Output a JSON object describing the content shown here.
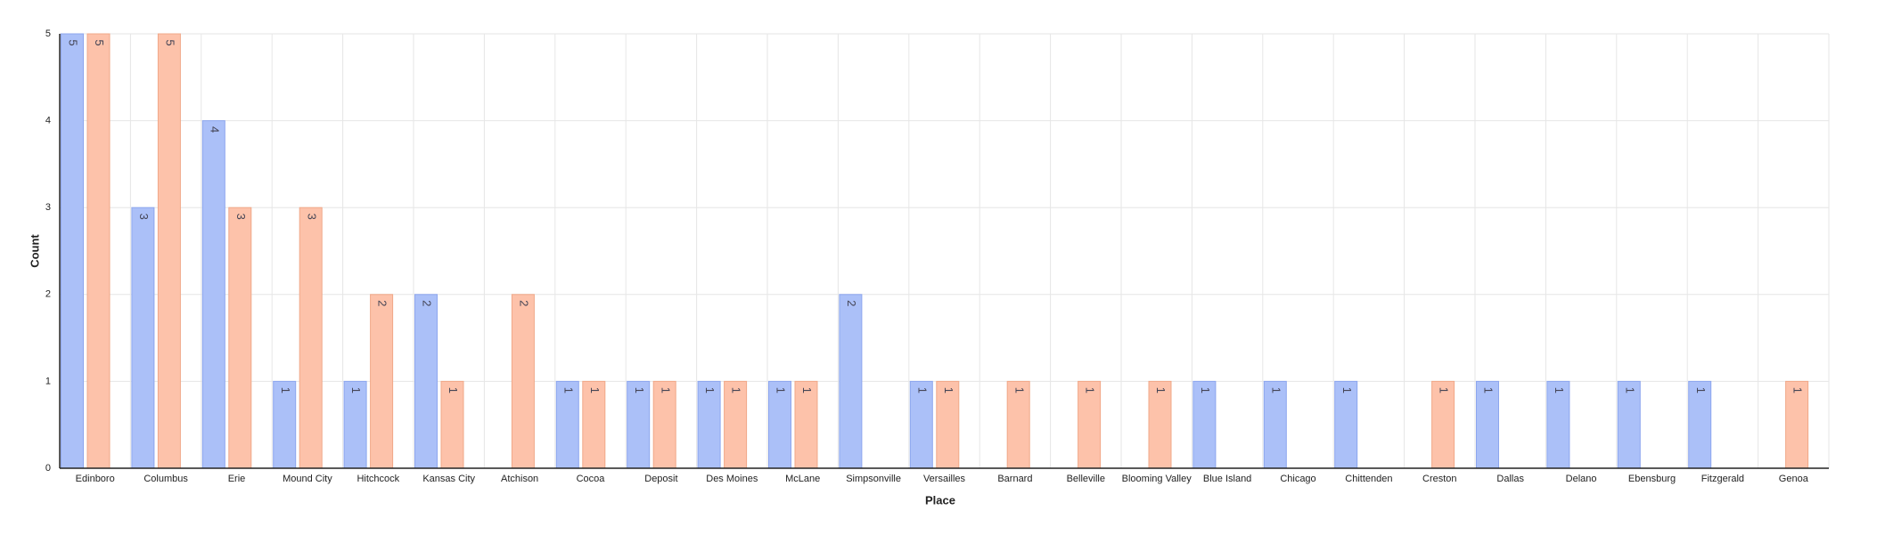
{
  "chart_data": {
    "type": "bar",
    "x_label": "Place",
    "y_label": "Count",
    "categories": [
      "Edinboro",
      "Columbus",
      "Erie",
      "Mound City",
      "Hitchcock",
      "Kansas City",
      "Atchison",
      "Cocoa",
      "Deposit",
      "Des Moines",
      "McLane",
      "Simpsonville",
      "Versailles",
      "Barnard",
      "Belleville",
      "Blooming Valley",
      "Blue Island",
      "Chicago",
      "Chittenden",
      "Creston",
      "Dallas",
      "Delano",
      "Ebensburg",
      "Fitzgerald",
      "Genoa"
    ],
    "series": [
      {
        "color": "#abc0f8",
        "values": [
          5,
          3,
          4,
          1,
          1,
          2,
          null,
          1,
          1,
          1,
          1,
          2,
          1,
          null,
          null,
          null,
          1,
          1,
          1,
          null,
          1,
          1,
          1,
          1,
          null
        ]
      },
      {
        "color": "#fdc2aa",
        "values": [
          5,
          5,
          3,
          3,
          2,
          1,
          2,
          1,
          1,
          1,
          1,
          null,
          1,
          1,
          1,
          1,
          null,
          null,
          null,
          1,
          null,
          null,
          null,
          null,
          1
        ]
      }
    ],
    "ylim": [
      0,
      5
    ],
    "yticks": [
      0,
      1,
      2,
      3,
      4,
      5
    ],
    "grid": true
  }
}
